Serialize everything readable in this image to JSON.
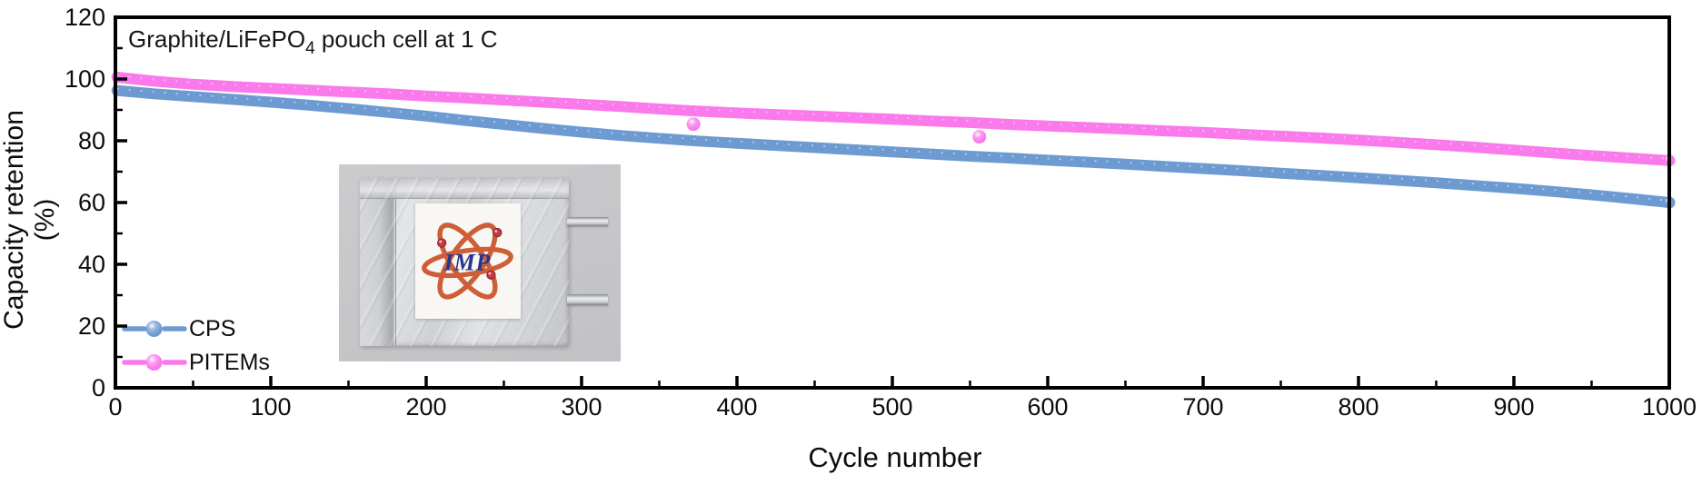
{
  "chart_data": {
    "type": "scatter",
    "title": "Graphite/LiFePO4 pouch cell at 1 C",
    "annotation": {
      "prefix": "Graphite/LiFePO",
      "sub": "4",
      "suffix": " pouch cell at 1 C"
    },
    "xlabel": "Cycle number",
    "ylabel": "Capacity retention (%)",
    "xlim": [
      0,
      1000
    ],
    "ylim": [
      0,
      120
    ],
    "x_major_ticks": [
      0,
      100,
      200,
      300,
      400,
      500,
      600,
      700,
      800,
      900,
      1000
    ],
    "x_minor_step": 50,
    "y_major_ticks": [
      0,
      20,
      40,
      60,
      80,
      100,
      120
    ],
    "y_minor_step": 10,
    "grid": false,
    "legend_position": "lower-left",
    "series": [
      {
        "name": "CPS",
        "color": "#6D9BD1",
        "x": [
          1,
          25,
          50,
          75,
          100,
          125,
          150,
          175,
          200,
          225,
          250,
          275,
          300,
          325,
          350,
          375,
          400,
          425,
          450,
          475,
          500,
          525,
          550,
          575,
          600,
          625,
          650,
          675,
          700,
          725,
          750,
          775,
          800,
          825,
          850,
          875,
          900,
          925,
          950,
          975,
          1000
        ],
        "y": [
          96.3,
          95.2,
          94.3,
          93.4,
          92.5,
          91.5,
          90.4,
          89.2,
          88.0,
          86.6,
          85.3,
          84.0,
          82.8,
          81.7,
          80.8,
          79.9,
          79.2,
          78.5,
          77.8,
          77.1,
          76.4,
          75.7,
          75.0,
          74.4,
          73.7,
          73.1,
          72.4,
          71.7,
          71.0,
          70.3,
          69.5,
          68.8,
          68.0,
          67.2,
          66.4,
          65.5,
          64.6,
          63.6,
          62.5,
          61.3,
          60.0
        ]
      },
      {
        "name": "PITEMs",
        "color": "#FA79EB",
        "x": [
          1,
          25,
          50,
          75,
          100,
          125,
          150,
          175,
          200,
          225,
          250,
          275,
          300,
          325,
          350,
          375,
          400,
          425,
          450,
          475,
          500,
          525,
          550,
          575,
          600,
          625,
          650,
          675,
          700,
          725,
          750,
          775,
          800,
          825,
          850,
          875,
          900,
          925,
          950,
          975,
          1000
        ],
        "y": [
          100.6,
          99.3,
          98.3,
          97.6,
          97.0,
          96.4,
          95.8,
          95.2,
          94.5,
          93.9,
          93.2,
          92.5,
          91.8,
          91.1,
          90.3,
          89.6,
          89.0,
          88.5,
          88.0,
          87.5,
          87.0,
          86.4,
          85.9,
          85.3,
          84.8,
          84.3,
          83.8,
          83.2,
          82.7,
          82.1,
          81.5,
          80.9,
          80.2,
          79.5,
          78.7,
          77.9,
          77.0,
          76.1,
          75.2,
          74.4,
          73.6
        ],
        "outliers": [
          {
            "cycle": 372,
            "value": 85.4
          },
          {
            "cycle": 556,
            "value": 81.3
          }
        ]
      }
    ],
    "inset": {
      "content": "photo of Graphite/LiFePO4 pouch cell with IMP atom logo label",
      "logo_text": "IMP"
    }
  }
}
